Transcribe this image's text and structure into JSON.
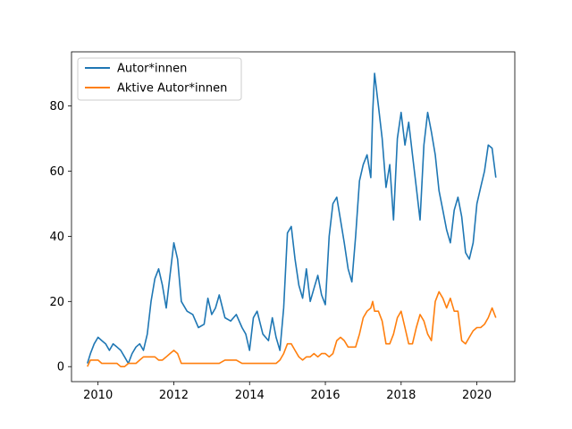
{
  "chart_data": {
    "type": "line",
    "title": "",
    "xlabel": "",
    "ylabel": "",
    "xlim": [
      2009.3,
      2021.0
    ],
    "ylim": [
      -4.6,
      96.6
    ],
    "x_ticks": [
      2010,
      2012,
      2014,
      2016,
      2018,
      2020
    ],
    "x_tick_labels": [
      "2010",
      "2012",
      "2014",
      "2016",
      "2018",
      "2020"
    ],
    "y_ticks": [
      0,
      20,
      40,
      60,
      80
    ],
    "y_tick_labels": [
      "0",
      "20",
      "40",
      "60",
      "80"
    ],
    "grid": false,
    "legend_position": "top-left",
    "series": [
      {
        "name": "Autor*innen",
        "color": "#1f77b4",
        "x": [
          2009.72,
          2009.8,
          2009.9,
          2010.0,
          2010.1,
          2010.2,
          2010.3,
          2010.4,
          2010.5,
          2010.6,
          2010.7,
          2010.8,
          2010.9,
          2011.0,
          2011.1,
          2011.2,
          2011.3,
          2011.4,
          2011.5,
          2011.6,
          2011.7,
          2011.8,
          2011.9,
          2012.0,
          2012.1,
          2012.2,
          2012.35,
          2012.5,
          2012.65,
          2012.8,
          2012.9,
          2013.0,
          2013.1,
          2013.2,
          2013.35,
          2013.5,
          2013.65,
          2013.8,
          2013.9,
          2014.0,
          2014.1,
          2014.2,
          2014.35,
          2014.5,
          2014.6,
          2014.7,
          2014.8,
          2014.9,
          2015.0,
          2015.1,
          2015.2,
          2015.3,
          2015.4,
          2015.5,
          2015.6,
          2015.7,
          2015.8,
          2015.9,
          2016.0,
          2016.1,
          2016.2,
          2016.3,
          2016.4,
          2016.5,
          2016.6,
          2016.7,
          2016.8,
          2016.9,
          2017.0,
          2017.1,
          2017.2,
          2017.25,
          2017.3,
          2017.4,
          2017.5,
          2017.6,
          2017.7,
          2017.8,
          2017.9,
          2018.0,
          2018.1,
          2018.2,
          2018.3,
          2018.4,
          2018.5,
          2018.6,
          2018.7,
          2018.8,
          2018.9,
          2019.0,
          2019.1,
          2019.2,
          2019.3,
          2019.4,
          2019.5,
          2019.6,
          2019.7,
          2019.8,
          2019.9,
          2020.0,
          2020.1,
          2020.2,
          2020.3,
          2020.4,
          2020.5
        ],
        "values": [
          1,
          4,
          7,
          9,
          8,
          7,
          5,
          7,
          6,
          5,
          3,
          1,
          4,
          6,
          7,
          5,
          10,
          20,
          27,
          30,
          25,
          18,
          28,
          38,
          33,
          20,
          17,
          16,
          12,
          13,
          21,
          16,
          18,
          22,
          15,
          14,
          16,
          12,
          10,
          5,
          15,
          17,
          10,
          8,
          15,
          9,
          5,
          18,
          41,
          43,
          33,
          25,
          21,
          30,
          20,
          24,
          28,
          22,
          19,
          40,
          50,
          52,
          45,
          38,
          30,
          26,
          40,
          57,
          62,
          65,
          58,
          78,
          90,
          80,
          70,
          55,
          62,
          45,
          70,
          78,
          68,
          75,
          65,
          55,
          45,
          68,
          78,
          72,
          65,
          54,
          48,
          42,
          38,
          48,
          52,
          46,
          35,
          33,
          38,
          50,
          55,
          60,
          68,
          67,
          58
        ]
      },
      {
        "name": "Aktive Autor*innen",
        "color": "#ff7f0e",
        "x": [
          2009.72,
          2009.8,
          2009.9,
          2010.0,
          2010.1,
          2010.2,
          2010.3,
          2010.4,
          2010.5,
          2010.6,
          2010.7,
          2010.8,
          2010.9,
          2011.0,
          2011.1,
          2011.2,
          2011.3,
          2011.4,
          2011.5,
          2011.6,
          2011.7,
          2011.8,
          2011.9,
          2012.0,
          2012.1,
          2012.2,
          2012.35,
          2012.5,
          2012.65,
          2012.8,
          2012.9,
          2013.0,
          2013.1,
          2013.2,
          2013.35,
          2013.5,
          2013.65,
          2013.8,
          2013.9,
          2014.0,
          2014.1,
          2014.2,
          2014.35,
          2014.5,
          2014.6,
          2014.7,
          2014.8,
          2014.9,
          2015.0,
          2015.1,
          2015.2,
          2015.3,
          2015.4,
          2015.5,
          2015.6,
          2015.7,
          2015.8,
          2015.9,
          2016.0,
          2016.1,
          2016.2,
          2016.3,
          2016.4,
          2016.5,
          2016.6,
          2016.7,
          2016.8,
          2016.9,
          2017.0,
          2017.1,
          2017.2,
          2017.25,
          2017.3,
          2017.4,
          2017.5,
          2017.6,
          2017.7,
          2017.8,
          2017.9,
          2018.0,
          2018.1,
          2018.2,
          2018.3,
          2018.4,
          2018.5,
          2018.6,
          2018.7,
          2018.8,
          2018.9,
          2019.0,
          2019.1,
          2019.2,
          2019.3,
          2019.4,
          2019.5,
          2019.6,
          2019.7,
          2019.8,
          2019.9,
          2020.0,
          2020.1,
          2020.2,
          2020.3,
          2020.4,
          2020.5
        ],
        "values": [
          0,
          2,
          2,
          2,
          1,
          1,
          1,
          1,
          1,
          0,
          0,
          1,
          1,
          1,
          2,
          3,
          3,
          3,
          3,
          2,
          2,
          3,
          4,
          5,
          4,
          1,
          1,
          1,
          1,
          1,
          1,
          1,
          1,
          1,
          2,
          2,
          2,
          1,
          1,
          1,
          1,
          1,
          1,
          1,
          1,
          1,
          2,
          4,
          7,
          7,
          5,
          3,
          2,
          3,
          3,
          4,
          3,
          4,
          4,
          3,
          4,
          8,
          9,
          8,
          6,
          6,
          6,
          10,
          15,
          17,
          18,
          20,
          17,
          17,
          14,
          7,
          7,
          10,
          15,
          17,
          12,
          7,
          7,
          12,
          16,
          14,
          10,
          8,
          20,
          23,
          21,
          18,
          21,
          17,
          17,
          8,
          7,
          9,
          11,
          12,
          12,
          13,
          15,
          18,
          15
        ]
      }
    ]
  }
}
